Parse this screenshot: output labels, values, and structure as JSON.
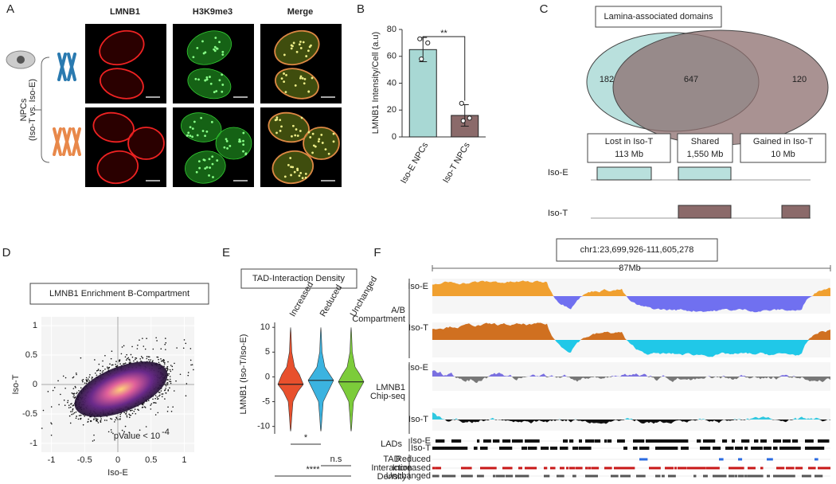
{
  "panels": {
    "A": {
      "label": "A",
      "columns": [
        "LMNB1",
        "H3K9me3",
        "Merge"
      ],
      "side_label": [
        "NPCs",
        "(Iso-T vs. Iso-E)"
      ]
    },
    "C": {
      "label": "C",
      "title": "Lamina-associated domains",
      "venn": [
        "182",
        "647",
        "120"
      ],
      "boxes": [
        [
          "Lost in Iso-T",
          "113 Mb"
        ],
        [
          "Shared",
          "1,550 Mb"
        ],
        [
          "Gained in Iso-T",
          "10 Mb"
        ]
      ],
      "tracks": [
        "Iso-E",
        "Iso-T"
      ]
    },
    "F": {
      "label": "F",
      "title": "chr1:23,699,926-111,605,278",
      "scale": "87Mb",
      "ab_label": [
        "A/B",
        "Compartment"
      ],
      "ab_tracks": [
        "Iso-E",
        "Iso-T"
      ],
      "chip_label": [
        "LMNB1",
        "Chip-seq"
      ],
      "chip_tracks": [
        "Iso-E",
        "Iso-T"
      ],
      "lads_label": "LADs",
      "lads_tracks": [
        "Iso-E",
        "Iso-T"
      ],
      "tad_label": [
        "TAD",
        "Interaction",
        "Density"
      ],
      "tad_tracks": [
        "Reduced",
        "Increased",
        "Unchanged"
      ]
    }
  },
  "chart_data": [
    {
      "type": "bar",
      "label": "B",
      "ylabel": "LMNB1 Intensity/Cell (a.u)",
      "categories": [
        "Iso-E NPCs",
        "Iso-T NPCs"
      ],
      "values": [
        65,
        16
      ],
      "errors": [
        9,
        8
      ],
      "points": [
        [
          73,
          70,
          58
        ],
        [
          25,
          14,
          12
        ]
      ],
      "colors": [
        "#a8d8d4",
        "#8b6a6a"
      ],
      "ylim": [
        0,
        80
      ],
      "yticks": [
        0,
        20,
        40,
        60,
        80
      ],
      "significance": "**"
    },
    {
      "type": "scatter",
      "label": "D",
      "title": "LMNB1 Enrichment B-Compartment",
      "xlabel": "Iso-E",
      "ylabel": "Iso-T",
      "xlim": [
        -1.15,
        1.15
      ],
      "ylim": [
        -1.15,
        1.15
      ],
      "xticks": [
        -1,
        -0.5,
        0,
        0.5,
        1
      ],
      "yticks": [
        1,
        0.5,
        0,
        -0.5,
        -1
      ],
      "annotation": "pValue < 10",
      "annotation_superscript": "-4"
    },
    {
      "type": "violin",
      "label": "E",
      "title": "TAD-Interaction Density",
      "ylabel": "LMNB1 (Iso-T/Iso-E)",
      "categories": [
        "Increased",
        "Reduced",
        "Unchanged"
      ],
      "colors": [
        "#e8502d",
        "#3bb3e0",
        "#7ccc3a"
      ],
      "medians": [
        -1.5,
        -0.7,
        -1
      ],
      "ylim": [
        -11.5,
        11
      ],
      "yticks": [
        10,
        5,
        0,
        -5,
        -10
      ],
      "comparisons": [
        "*",
        "n.s",
        "****"
      ]
    }
  ]
}
